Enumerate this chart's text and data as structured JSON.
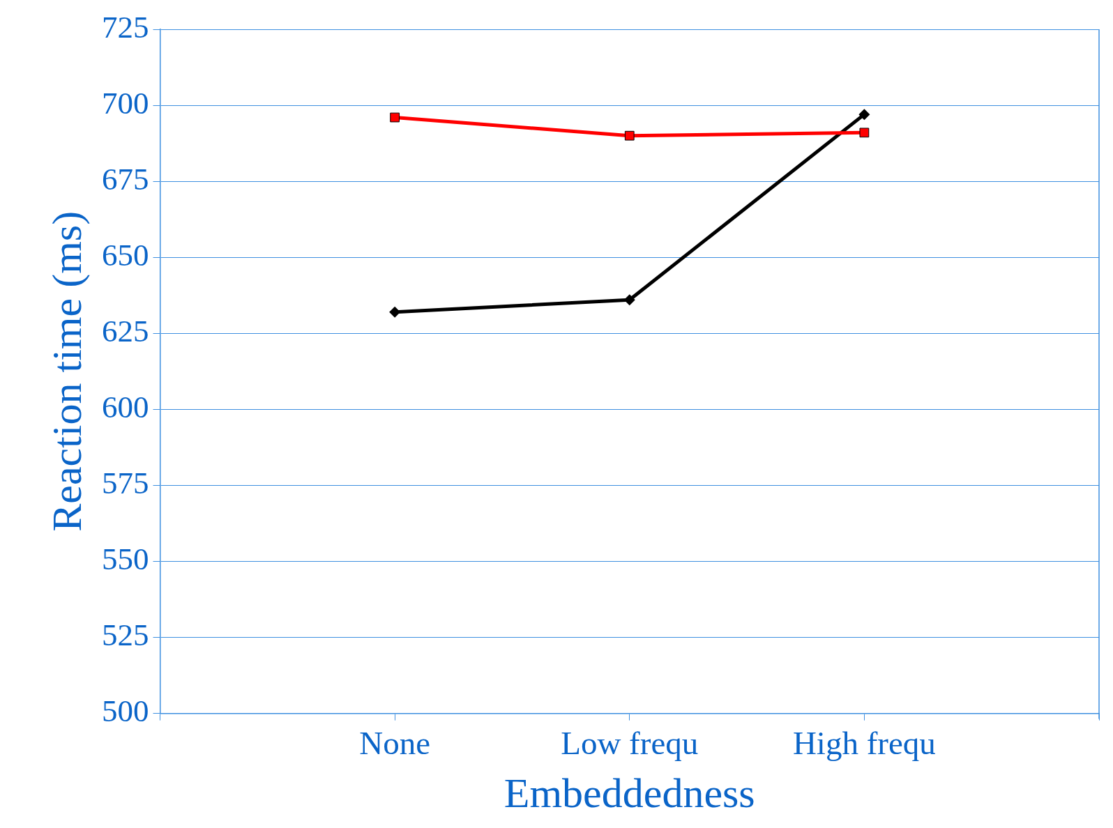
{
  "chart_data": {
    "type": "line",
    "xlabel": "Embeddedness",
    "ylabel": "Reaction time (ms)",
    "categories": [
      null,
      "None",
      "Low frequ",
      "High frequ",
      null
    ],
    "series": [
      {
        "color": "#ff0000",
        "marker": "square",
        "values": [
          null,
          696,
          690,
          691,
          null
        ]
      },
      {
        "color": "#000000",
        "marker": "diamond",
        "values": [
          null,
          632,
          636,
          697,
          null
        ]
      }
    ],
    "ylim": [
      500,
      725
    ],
    "yticks": [
      500,
      525,
      550,
      575,
      600,
      625,
      650,
      675,
      700,
      725
    ],
    "grid": "y",
    "legend": false,
    "line_style": "solid"
  }
}
